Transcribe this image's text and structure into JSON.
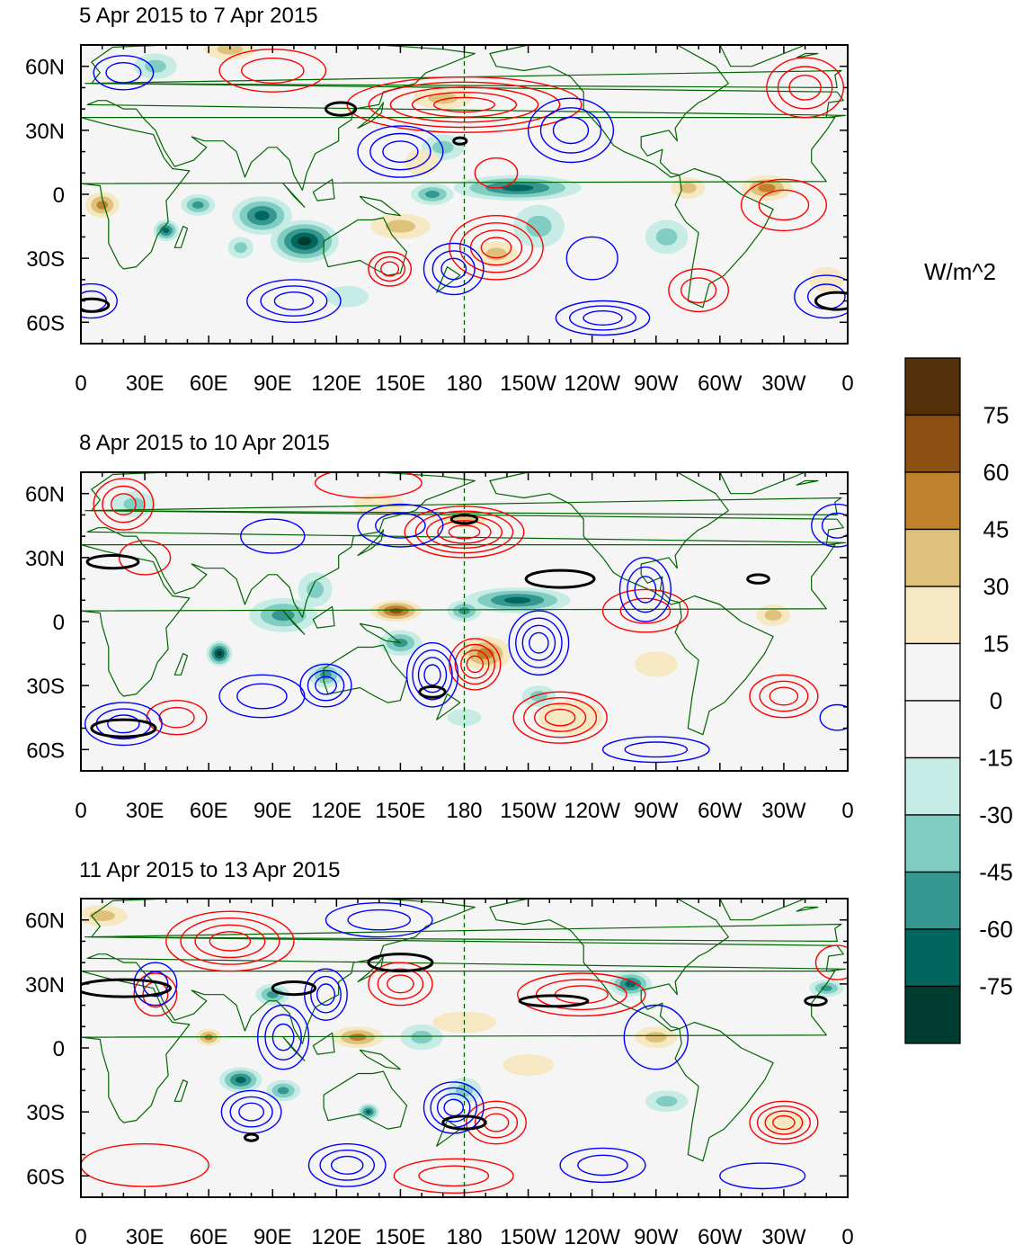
{
  "panels": [
    {
      "title": "5 Apr 2015 to 7 Apr 2015",
      "features": {
        "fill": [
          {
            "lon": 40,
            "lat": -17,
            "rx": 6,
            "ry": 5,
            "v": -60
          },
          {
            "lon": 55,
            "lat": -5,
            "rx": 8,
            "ry": 5,
            "v": -45
          },
          {
            "lon": 85,
            "lat": -10,
            "rx": 14,
            "ry": 9,
            "v": -60
          },
          {
            "lon": 105,
            "lat": -22,
            "rx": 16,
            "ry": 10,
            "v": -75
          },
          {
            "lon": 75,
            "lat": -25,
            "rx": 6,
            "ry": 5,
            "v": -30
          },
          {
            "lon": 165,
            "lat": 0,
            "rx": 10,
            "ry": 5,
            "v": -45
          },
          {
            "lon": 205,
            "lat": 3,
            "rx": 30,
            "ry": 6,
            "v": -60
          },
          {
            "lon": 170,
            "lat": 22,
            "rx": 10,
            "ry": 6,
            "v": -30
          },
          {
            "lon": 215,
            "lat": -15,
            "rx": 12,
            "ry": 10,
            "v": -30
          },
          {
            "lon": 275,
            "lat": -20,
            "rx": 10,
            "ry": 8,
            "v": -30
          },
          {
            "lon": 35,
            "lat": 60,
            "rx": 10,
            "ry": 6,
            "v": -30
          },
          {
            "lon": 125,
            "lat": -48,
            "rx": 10,
            "ry": 5,
            "v": -15
          },
          {
            "lon": 10,
            "lat": -5,
            "rx": 8,
            "ry": 6,
            "v": 45
          },
          {
            "lon": 322,
            "lat": 3,
            "rx": 12,
            "ry": 6,
            "v": 45
          },
          {
            "lon": 285,
            "lat": 3,
            "rx": 8,
            "ry": 5,
            "v": 30
          },
          {
            "lon": 70,
            "lat": 68,
            "rx": 12,
            "ry": 5,
            "v": 30
          },
          {
            "lon": 150,
            "lat": -15,
            "rx": 14,
            "ry": 6,
            "v": 30
          },
          {
            "lon": 160,
            "lat": 15,
            "rx": 8,
            "ry": 6,
            "v": 15
          },
          {
            "lon": 170,
            "lat": 45,
            "rx": 14,
            "ry": 5,
            "v": 30
          },
          {
            "lon": 195,
            "lat": -28,
            "rx": 10,
            "ry": 6,
            "v": 30
          },
          {
            "lon": 350,
            "lat": -40,
            "rx": 8,
            "ry": 6,
            "v": 15
          }
        ],
        "red": [
          {
            "lon": 180,
            "lat": 42,
            "rx": 55,
            "ry": 13,
            "n": 5
          },
          {
            "lon": 90,
            "lat": 58,
            "rx": 25,
            "ry": 10,
            "n": 2
          },
          {
            "lon": 195,
            "lat": -25,
            "rx": 22,
            "ry": 15,
            "n": 4
          },
          {
            "lon": 145,
            "lat": -35,
            "rx": 10,
            "ry": 8,
            "n": 3
          },
          {
            "lon": 290,
            "lat": -45,
            "rx": 14,
            "ry": 10,
            "n": 2
          },
          {
            "lon": 340,
            "lat": 50,
            "rx": 18,
            "ry": 14,
            "n": 3
          },
          {
            "lon": 330,
            "lat": -5,
            "rx": 20,
            "ry": 12,
            "n": 2
          },
          {
            "lon": 195,
            "lat": 10,
            "rx": 10,
            "ry": 7,
            "n": 1
          }
        ],
        "blue": [
          {
            "lon": 150,
            "lat": 20,
            "rx": 20,
            "ry": 12,
            "n": 3
          },
          {
            "lon": 230,
            "lat": 30,
            "rx": 20,
            "ry": 15,
            "n": 3
          },
          {
            "lon": 175,
            "lat": -35,
            "rx": 14,
            "ry": 12,
            "n": 3
          },
          {
            "lon": 100,
            "lat": -50,
            "rx": 22,
            "ry": 10,
            "n": 3
          },
          {
            "lon": 245,
            "lat": -58,
            "rx": 22,
            "ry": 8,
            "n": 3
          },
          {
            "lon": 20,
            "lat": 57,
            "rx": 14,
            "ry": 8,
            "n": 2
          },
          {
            "lon": 5,
            "lat": -50,
            "rx": 12,
            "ry": 8,
            "n": 2
          },
          {
            "lon": 240,
            "lat": -30,
            "rx": 12,
            "ry": 10,
            "n": 1
          },
          {
            "lon": 350,
            "lat": -48,
            "rx": 15,
            "ry": 10,
            "n": 2
          }
        ],
        "black": [
          {
            "lon": 122,
            "lat": 40,
            "rx": 7,
            "ry": 3
          },
          {
            "lon": 178,
            "lat": 25,
            "rx": 3,
            "ry": 1.5
          },
          {
            "lon": 355,
            "lat": -50,
            "rx": 10,
            "ry": 4
          },
          {
            "lon": 5,
            "lat": -52,
            "rx": 8,
            "ry": 3
          }
        ]
      }
    },
    {
      "title": "8 Apr 2015 to 10 Apr 2015",
      "features": {
        "fill": [
          {
            "lon": 65,
            "lat": -15,
            "rx": 6,
            "ry": 6,
            "v": -75
          },
          {
            "lon": 95,
            "lat": 3,
            "rx": 16,
            "ry": 8,
            "v": -45
          },
          {
            "lon": 115,
            "lat": -25,
            "rx": 8,
            "ry": 6,
            "v": -45
          },
          {
            "lon": 150,
            "lat": -10,
            "rx": 10,
            "ry": 6,
            "v": -45
          },
          {
            "lon": 205,
            "lat": 10,
            "rx": 25,
            "ry": 6,
            "v": -60
          },
          {
            "lon": 180,
            "lat": 5,
            "rx": 8,
            "ry": 5,
            "v": -45
          },
          {
            "lon": 25,
            "lat": 55,
            "rx": 10,
            "ry": 6,
            "v": -30
          },
          {
            "lon": 110,
            "lat": 15,
            "rx": 8,
            "ry": 8,
            "v": -30
          },
          {
            "lon": 215,
            "lat": -35,
            "rx": 8,
            "ry": 5,
            "v": -30
          },
          {
            "lon": 180,
            "lat": -45,
            "rx": 8,
            "ry": 4,
            "v": -15
          },
          {
            "lon": 148,
            "lat": 5,
            "rx": 12,
            "ry": 5,
            "v": 60
          },
          {
            "lon": 190,
            "lat": -15,
            "rx": 12,
            "ry": 8,
            "v": 45
          },
          {
            "lon": 325,
            "lat": 3,
            "rx": 8,
            "ry": 5,
            "v": 30
          },
          {
            "lon": 140,
            "lat": 55,
            "rx": 12,
            "ry": 5,
            "v": 15
          },
          {
            "lon": 180,
            "lat": 48,
            "rx": 10,
            "ry": 4,
            "v": 30
          },
          {
            "lon": 270,
            "lat": -20,
            "rx": 10,
            "ry": 6,
            "v": 15
          },
          {
            "lon": 230,
            "lat": -45,
            "rx": 15,
            "ry": 8,
            "v": 15
          }
        ],
        "red": [
          {
            "lon": 180,
            "lat": 42,
            "rx": 28,
            "ry": 12,
            "n": 5
          },
          {
            "lon": 20,
            "lat": 55,
            "rx": 14,
            "ry": 12,
            "n": 3
          },
          {
            "lon": 185,
            "lat": -20,
            "rx": 12,
            "ry": 12,
            "n": 4
          },
          {
            "lon": 225,
            "lat": -45,
            "rx": 22,
            "ry": 12,
            "n": 4
          },
          {
            "lon": 330,
            "lat": -35,
            "rx": 16,
            "ry": 10,
            "n": 3
          },
          {
            "lon": 265,
            "lat": 5,
            "rx": 20,
            "ry": 10,
            "n": 2
          },
          {
            "lon": 45,
            "lat": -45,
            "rx": 14,
            "ry": 8,
            "n": 2
          },
          {
            "lon": 135,
            "lat": 65,
            "rx": 25,
            "ry": 7,
            "n": 1
          },
          {
            "lon": 30,
            "lat": 30,
            "rx": 12,
            "ry": 8,
            "n": 1
          }
        ],
        "blue": [
          {
            "lon": 150,
            "lat": 45,
            "rx": 20,
            "ry": 10,
            "n": 2
          },
          {
            "lon": 165,
            "lat": -25,
            "rx": 12,
            "ry": 15,
            "n": 4
          },
          {
            "lon": 215,
            "lat": -10,
            "rx": 14,
            "ry": 15,
            "n": 4
          },
          {
            "lon": 265,
            "lat": 15,
            "rx": 12,
            "ry": 15,
            "n": 3
          },
          {
            "lon": 115,
            "lat": -30,
            "rx": 12,
            "ry": 10,
            "n": 3
          },
          {
            "lon": 20,
            "lat": -48,
            "rx": 18,
            "ry": 10,
            "n": 3
          },
          {
            "lon": 85,
            "lat": -35,
            "rx": 20,
            "ry": 10,
            "n": 2
          },
          {
            "lon": 270,
            "lat": -60,
            "rx": 25,
            "ry": 6,
            "n": 2
          },
          {
            "lon": 355,
            "lat": 45,
            "rx": 12,
            "ry": 10,
            "n": 2
          },
          {
            "lon": 90,
            "lat": 40,
            "rx": 15,
            "ry": 8,
            "n": 1
          },
          {
            "lon": 355,
            "lat": -45,
            "rx": 8,
            "ry": 6,
            "n": 1
          }
        ],
        "black": [
          {
            "lon": 15,
            "lat": 28,
            "rx": 12,
            "ry": 3
          },
          {
            "lon": 180,
            "lat": 48,
            "rx": 6,
            "ry": 2
          },
          {
            "lon": 165,
            "lat": -33,
            "rx": 6,
            "ry": 2.5
          },
          {
            "lon": 225,
            "lat": 20,
            "rx": 16,
            "ry": 4
          },
          {
            "lon": 318,
            "lat": 20,
            "rx": 5,
            "ry": 2
          },
          {
            "lon": 20,
            "lat": -50,
            "rx": 15,
            "ry": 4
          }
        ]
      }
    },
    {
      "title": "11 Apr 2015 to 13 Apr 2015",
      "features": {
        "fill": [
          {
            "lon": 75,
            "lat": -15,
            "rx": 10,
            "ry": 6,
            "v": -60
          },
          {
            "lon": 95,
            "lat": -20,
            "rx": 8,
            "ry": 5,
            "v": -45
          },
          {
            "lon": 90,
            "lat": 25,
            "rx": 8,
            "ry": 5,
            "v": -45
          },
          {
            "lon": 135,
            "lat": -30,
            "rx": 5,
            "ry": 4,
            "v": -60
          },
          {
            "lon": 160,
            "lat": 5,
            "rx": 10,
            "ry": 6,
            "v": -30
          },
          {
            "lon": 258,
            "lat": 30,
            "rx": 10,
            "ry": 6,
            "v": -60
          },
          {
            "lon": 275,
            "lat": -25,
            "rx": 10,
            "ry": 5,
            "v": -30
          },
          {
            "lon": 350,
            "lat": 28,
            "rx": 8,
            "ry": 4,
            "v": -45
          },
          {
            "lon": 180,
            "lat": -20,
            "rx": 8,
            "ry": 6,
            "v": -30
          },
          {
            "lon": 60,
            "lat": 5,
            "rx": 6,
            "ry": 4,
            "v": 45
          },
          {
            "lon": 130,
            "lat": 5,
            "rx": 12,
            "ry": 5,
            "v": 45
          },
          {
            "lon": 270,
            "lat": 5,
            "rx": 10,
            "ry": 5,
            "v": 30
          },
          {
            "lon": 180,
            "lat": 12,
            "rx": 15,
            "ry": 5,
            "v": 15
          },
          {
            "lon": 210,
            "lat": -8,
            "rx": 12,
            "ry": 5,
            "v": 15
          },
          {
            "lon": 330,
            "lat": -35,
            "rx": 10,
            "ry": 6,
            "v": 15
          },
          {
            "lon": 10,
            "lat": 62,
            "rx": 12,
            "ry": 5,
            "v": 30
          }
        ],
        "red": [
          {
            "lon": 70,
            "lat": 50,
            "rx": 30,
            "ry": 14,
            "n": 4
          },
          {
            "lon": 150,
            "lat": 30,
            "rx": 15,
            "ry": 10,
            "n": 3
          },
          {
            "lon": 235,
            "lat": 25,
            "rx": 30,
            "ry": 10,
            "n": 3
          },
          {
            "lon": 195,
            "lat": -35,
            "rx": 14,
            "ry": 10,
            "n": 3
          },
          {
            "lon": 330,
            "lat": -35,
            "rx": 16,
            "ry": 10,
            "n": 4
          },
          {
            "lon": 175,
            "lat": -60,
            "rx": 28,
            "ry": 8,
            "n": 2
          },
          {
            "lon": 35,
            "lat": 25,
            "rx": 10,
            "ry": 10,
            "n": 2
          },
          {
            "lon": 30,
            "lat": -55,
            "rx": 30,
            "ry": 10,
            "n": 1
          },
          {
            "lon": 355,
            "lat": 40,
            "rx": 10,
            "ry": 8,
            "n": 1
          }
        ],
        "blue": [
          {
            "lon": 95,
            "lat": 5,
            "rx": 12,
            "ry": 15,
            "n": 3
          },
          {
            "lon": 80,
            "lat": -30,
            "rx": 14,
            "ry": 10,
            "n": 3
          },
          {
            "lon": 125,
            "lat": -55,
            "rx": 18,
            "ry": 10,
            "n": 3
          },
          {
            "lon": 175,
            "lat": -28,
            "rx": 14,
            "ry": 12,
            "n": 4
          },
          {
            "lon": 115,
            "lat": 25,
            "rx": 10,
            "ry": 12,
            "n": 3
          },
          {
            "lon": 140,
            "lat": 60,
            "rx": 25,
            "ry": 8,
            "n": 2
          },
          {
            "lon": 245,
            "lat": -55,
            "rx": 20,
            "ry": 8,
            "n": 2
          },
          {
            "lon": 320,
            "lat": -60,
            "rx": 20,
            "ry": 6,
            "n": 1
          },
          {
            "lon": 35,
            "lat": 30,
            "rx": 10,
            "ry": 10,
            "n": 2
          },
          {
            "lon": 270,
            "lat": 5,
            "rx": 15,
            "ry": 15,
            "n": 1
          }
        ],
        "black": [
          {
            "lon": 20,
            "lat": 28,
            "rx": 22,
            "ry": 4
          },
          {
            "lon": 100,
            "lat": 28,
            "rx": 10,
            "ry": 3
          },
          {
            "lon": 150,
            "lat": 40,
            "rx": 15,
            "ry": 4
          },
          {
            "lon": 180,
            "lat": -35,
            "rx": 10,
            "ry": 3
          },
          {
            "lon": 222,
            "lat": 22,
            "rx": 16,
            "ry": 2.5
          },
          {
            "lon": 80,
            "lat": -42,
            "rx": 3,
            "ry": 1.5
          },
          {
            "lon": 345,
            "lat": 22,
            "rx": 5,
            "ry": 2
          }
        ]
      }
    }
  ],
  "x_tick_labels": [
    "0",
    "30E",
    "60E",
    "90E",
    "120E",
    "150E",
    "180",
    "150W",
    "120W",
    "90W",
    "60W",
    "30W",
    "0"
  ],
  "y_tick_labels": [
    "60N",
    "30N",
    "0",
    "30S",
    "60S"
  ],
  "colorbar": {
    "title": "W/m^2",
    "tick_labels": [
      "75",
      "60",
      "45",
      "30",
      "15",
      "0",
      "-15",
      "-30",
      "-45",
      "-60",
      "-75"
    ],
    "colors": [
      "#54300a",
      "#8c5112",
      "#bf812c",
      "#dec17b",
      "#f6e8c3",
      "#f5f5f5",
      "#f5f5f5",
      "#c7ebe5",
      "#80cdc1",
      "#35978f",
      "#00665e",
      "#003c30"
    ]
  },
  "styles": {
    "positive_contour_color": "#ff0000",
    "negative_contour_color": "#0000ff",
    "zero_contour_color": "#000000",
    "coastline_color": "#006400",
    "background_color": "#f5f5f5"
  }
}
